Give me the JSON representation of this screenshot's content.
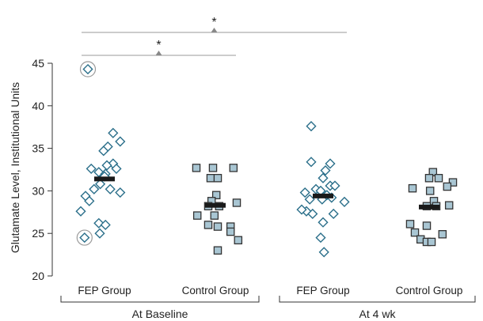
{
  "chart_data": {
    "type": "scatter",
    "ylabel": "Glutamate Level, Institutional Units",
    "xlabel": "",
    "ylim": [
      20,
      45
    ],
    "yticks": [
      20,
      25,
      30,
      35,
      40,
      45
    ],
    "grid": false,
    "categories": [
      "FEP Group",
      "Control Group",
      "FEP Group",
      "Control Group"
    ],
    "groups": [
      {
        "label": "At Baseline",
        "categories": [
          0,
          1
        ]
      },
      {
        "label": "At 4 wk",
        "categories": [
          2,
          3
        ]
      }
    ],
    "series": [
      {
        "category": 0,
        "marker": "diamond",
        "color": "#2b6f8a",
        "fill": "#ffffff",
        "mean": 31.4,
        "points": [
          {
            "offset": -0.35,
            "y": 44.3,
            "circled": true
          },
          {
            "offset": 0.18,
            "y": 36.8
          },
          {
            "offset": 0.33,
            "y": 35.8
          },
          {
            "offset": 0.07,
            "y": 35.2
          },
          {
            "offset": -0.02,
            "y": 34.7
          },
          {
            "offset": 0.18,
            "y": 33.2
          },
          {
            "offset": 0.05,
            "y": 33.0
          },
          {
            "offset": -0.28,
            "y": 32.6
          },
          {
            "offset": 0.25,
            "y": 32.6
          },
          {
            "offset": -0.12,
            "y": 32.2
          },
          {
            "offset": 0.02,
            "y": 32.0
          },
          {
            "offset": 0.0,
            "y": 31.7
          },
          {
            "offset": -0.09,
            "y": 30.8
          },
          {
            "offset": -0.22,
            "y": 30.2
          },
          {
            "offset": 0.12,
            "y": 30.2
          },
          {
            "offset": 0.33,
            "y": 29.8
          },
          {
            "offset": -0.4,
            "y": 29.4
          },
          {
            "offset": -0.32,
            "y": 28.8
          },
          {
            "offset": -0.5,
            "y": 27.6
          },
          {
            "offset": -0.12,
            "y": 26.2
          },
          {
            "offset": 0.02,
            "y": 26.0
          },
          {
            "offset": -0.1,
            "y": 25.0
          },
          {
            "offset": -0.42,
            "y": 24.5,
            "circled": true
          }
        ]
      },
      {
        "category": 1,
        "marker": "square",
        "color": "#333333",
        "fill": "#a9c6d3",
        "mean": 28.3,
        "points": [
          {
            "offset": -0.4,
            "y": 32.7
          },
          {
            "offset": -0.05,
            "y": 32.7
          },
          {
            "offset": 0.38,
            "y": 32.7
          },
          {
            "offset": -0.1,
            "y": 31.5
          },
          {
            "offset": 0.05,
            "y": 31.5
          },
          {
            "offset": 0.02,
            "y": 29.5
          },
          {
            "offset": -0.08,
            "y": 28.8
          },
          {
            "offset": 0.45,
            "y": 28.6
          },
          {
            "offset": -0.15,
            "y": 28.2
          },
          {
            "offset": 0.08,
            "y": 28.2
          },
          {
            "offset": -0.02,
            "y": 27.1
          },
          {
            "offset": -0.38,
            "y": 27.1
          },
          {
            "offset": -0.15,
            "y": 26.0
          },
          {
            "offset": 0.05,
            "y": 25.8
          },
          {
            "offset": 0.32,
            "y": 25.8
          },
          {
            "offset": 0.48,
            "y": 24.2
          },
          {
            "offset": 0.32,
            "y": 25.2
          },
          {
            "offset": 0.05,
            "y": 23.0
          }
        ]
      },
      {
        "category": 2,
        "marker": "diamond",
        "color": "#2b6f8a",
        "fill": "#ffffff",
        "mean": 29.4,
        "points": [
          {
            "offset": -0.25,
            "y": 37.6
          },
          {
            "offset": -0.25,
            "y": 33.4
          },
          {
            "offset": 0.15,
            "y": 33.2
          },
          {
            "offset": 0.05,
            "y": 32.4
          },
          {
            "offset": 0.0,
            "y": 31.5
          },
          {
            "offset": 0.15,
            "y": 30.6
          },
          {
            "offset": 0.25,
            "y": 30.6
          },
          {
            "offset": -0.15,
            "y": 30.2
          },
          {
            "offset": -0.05,
            "y": 30.0
          },
          {
            "offset": -0.38,
            "y": 29.8
          },
          {
            "offset": 0.08,
            "y": 29.5
          },
          {
            "offset": 0.18,
            "y": 29.2
          },
          {
            "offset": -0.02,
            "y": 29.0
          },
          {
            "offset": -0.28,
            "y": 29.0
          },
          {
            "offset": 0.45,
            "y": 28.7
          },
          {
            "offset": -0.35,
            "y": 27.6
          },
          {
            "offset": -0.22,
            "y": 27.3
          },
          {
            "offset": 0.22,
            "y": 27.3
          },
          {
            "offset": -0.45,
            "y": 27.8
          },
          {
            "offset": 0.0,
            "y": 26.3
          },
          {
            "offset": -0.05,
            "y": 24.5
          },
          {
            "offset": 0.02,
            "y": 22.8
          }
        ]
      },
      {
        "category": 3,
        "marker": "square",
        "color": "#333333",
        "fill": "#a9c6d3",
        "mean": 28.1,
        "points": [
          {
            "offset": 0.08,
            "y": 32.2
          },
          {
            "offset": 0.0,
            "y": 31.5
          },
          {
            "offset": 0.2,
            "y": 31.5
          },
          {
            "offset": 0.5,
            "y": 31.0
          },
          {
            "offset": 0.38,
            "y": 30.5
          },
          {
            "offset": -0.35,
            "y": 30.3
          },
          {
            "offset": 0.02,
            "y": 30.0
          },
          {
            "offset": 0.1,
            "y": 28.8
          },
          {
            "offset": 0.42,
            "y": 28.3
          },
          {
            "offset": -0.05,
            "y": 28.2
          },
          {
            "offset": 0.15,
            "y": 28.2
          },
          {
            "offset": -0.4,
            "y": 26.1
          },
          {
            "offset": -0.05,
            "y": 25.9
          },
          {
            "offset": -0.3,
            "y": 25.1
          },
          {
            "offset": 0.28,
            "y": 24.9
          },
          {
            "offset": -0.18,
            "y": 24.3
          },
          {
            "offset": -0.05,
            "y": 24.0
          },
          {
            "offset": 0.05,
            "y": 24.0
          }
        ]
      }
    ],
    "annotations": [
      {
        "from": 0,
        "to": 3,
        "label": "*"
      },
      {
        "from": 0,
        "to": 1,
        "label": "*"
      }
    ]
  }
}
